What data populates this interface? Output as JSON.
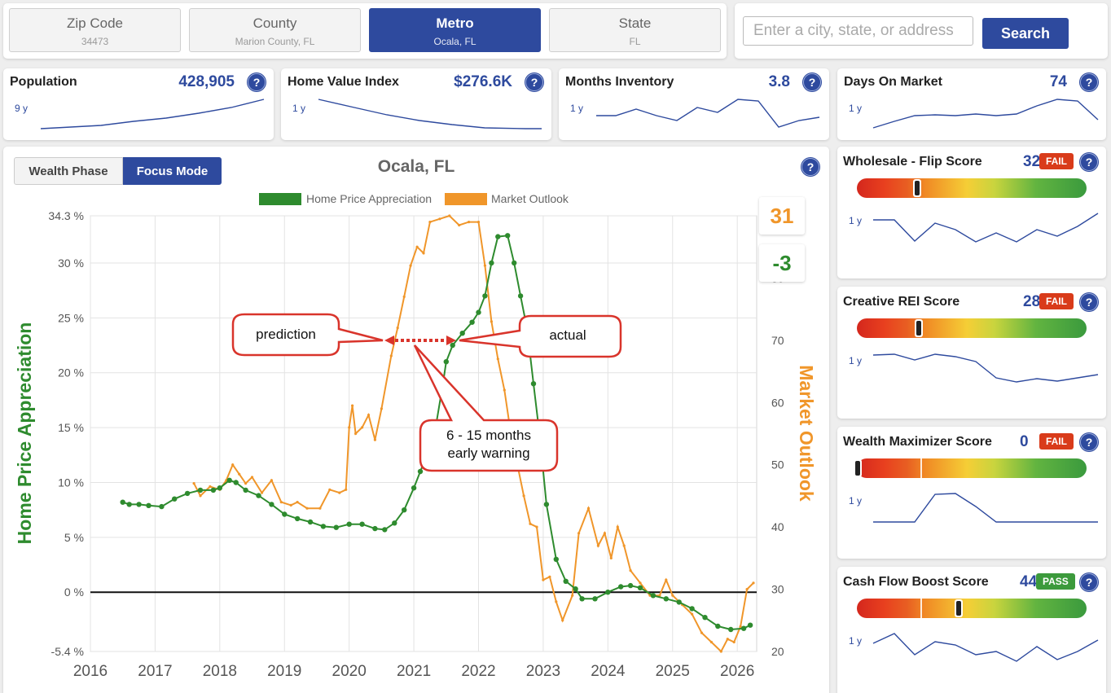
{
  "geo_tabs": [
    {
      "label": "Zip Code",
      "sub": "34473",
      "active": false
    },
    {
      "label": "County",
      "sub": "Marion County, FL",
      "active": false
    },
    {
      "label": "Metro",
      "sub": "Ocala, FL",
      "active": true
    },
    {
      "label": "State",
      "sub": "FL",
      "active": false
    }
  ],
  "search": {
    "placeholder": "Enter a city, state, or address",
    "button_label": "Search"
  },
  "help_glyph": "?",
  "stats": [
    {
      "title": "Population",
      "value": "428,905",
      "period": "9 y"
    },
    {
      "title": "Home Value Index",
      "value": "$276.6K",
      "period": "1 y"
    },
    {
      "title": "Months Inventory",
      "value": "3.8",
      "period": "1 y"
    },
    {
      "title": "Days On Market",
      "value": "74",
      "period": "1 y"
    }
  ],
  "mode_buttons": {
    "wealth_phase": "Wealth Phase",
    "focus_mode": "Focus Mode",
    "active": "focus_mode"
  },
  "scores_display": {
    "market_outlook": "31",
    "home_price_appreciation": "-3"
  },
  "callouts": {
    "prediction": "prediction",
    "actual": "actual",
    "warning_line1": "6 - 15 months",
    "warning_line2": "early warning"
  },
  "score_cards": [
    {
      "title": "Wholesale - Flip Score",
      "value": "32",
      "status": "FAIL",
      "gauge_fraction": 0.27,
      "period": "1 y"
    },
    {
      "title": "Creative REI Score",
      "value": "28",
      "status": "FAIL",
      "gauge_fraction": 0.28,
      "period": "1 y"
    },
    {
      "title": "Wealth Maximizer Score",
      "value": "0",
      "status": "FAIL",
      "gauge_fraction": 0.0,
      "period": "1 y"
    },
    {
      "title": "Cash Flow Boost Score",
      "value": "44",
      "status": "PASS",
      "gauge_fraction": 0.44,
      "period": "1 y"
    }
  ],
  "colors": {
    "brand_blue": "#2e4a9e",
    "hpa_green": "#2e8b2e",
    "outlook_orange": "#f0962a",
    "fail_red": "#d93b1a",
    "pass_green": "#3c9a3c"
  },
  "chart_data": {
    "type": "line",
    "title": "Ocala, FL",
    "ylabel": "Home Price Appreciation",
    "y2label": "Market Outlook",
    "xlabel": "",
    "xlim": [
      2016,
      2026.3
    ],
    "ylim": [
      -5.4,
      34.3
    ],
    "y2lim": [
      20,
      90
    ],
    "x_ticks": [
      "2016",
      "2017",
      "2018",
      "2019",
      "2020",
      "2021",
      "2022",
      "2023",
      "2024",
      "2025",
      "2026"
    ],
    "y_ticks": [
      "-5.4 %",
      "0 %",
      "5 %",
      "10 %",
      "15 %",
      "20 %",
      "25 %",
      "30 %",
      "34.3 %"
    ],
    "y2_ticks": [
      "20",
      "30",
      "40",
      "50",
      "60",
      "70",
      "80"
    ],
    "legend": [
      "Home Price Appreciation",
      "Market Outlook"
    ],
    "legend_position": "top",
    "grid": true,
    "series": [
      {
        "name": "Home Price Appreciation",
        "axis": "left",
        "points": [
          [
            2016.5,
            8.2
          ],
          [
            2016.6,
            8
          ],
          [
            2016.75,
            8
          ],
          [
            2016.9,
            7.9
          ],
          [
            2017.1,
            7.8
          ],
          [
            2017.3,
            8.5
          ],
          [
            2017.5,
            9
          ],
          [
            2017.7,
            9.3
          ],
          [
            2017.9,
            9.3
          ],
          [
            2018.0,
            9.5
          ],
          [
            2018.15,
            10.2
          ],
          [
            2018.25,
            10
          ],
          [
            2018.4,
            9.3
          ],
          [
            2018.6,
            8.8
          ],
          [
            2018.8,
            8
          ],
          [
            2019.0,
            7.1
          ],
          [
            2019.2,
            6.7
          ],
          [
            2019.4,
            6.4
          ],
          [
            2019.6,
            6
          ],
          [
            2019.8,
            5.9
          ],
          [
            2020.0,
            6.2
          ],
          [
            2020.2,
            6.2
          ],
          [
            2020.4,
            5.8
          ],
          [
            2020.55,
            5.7
          ],
          [
            2020.7,
            6.3
          ],
          [
            2020.85,
            7.5
          ],
          [
            2021.0,
            9.5
          ],
          [
            2021.1,
            11
          ],
          [
            2021.2,
            12.5
          ],
          [
            2021.35,
            15.5
          ],
          [
            2021.45,
            19
          ],
          [
            2021.5,
            21
          ],
          [
            2021.6,
            22.5
          ],
          [
            2021.75,
            23.6
          ],
          [
            2021.9,
            24.6
          ],
          [
            2022.0,
            25.5
          ],
          [
            2022.1,
            27
          ],
          [
            2022.2,
            30
          ],
          [
            2022.3,
            32.4
          ],
          [
            2022.45,
            32.5
          ],
          [
            2022.55,
            30
          ],
          [
            2022.65,
            27
          ],
          [
            2022.75,
            24
          ],
          [
            2022.85,
            19
          ],
          [
            2022.95,
            14
          ],
          [
            2023.05,
            8
          ],
          [
            2023.2,
            3
          ],
          [
            2023.35,
            1
          ],
          [
            2023.5,
            0.3
          ],
          [
            2023.6,
            -0.6
          ],
          [
            2023.8,
            -0.6
          ],
          [
            2024.0,
            0
          ],
          [
            2024.2,
            0.5
          ],
          [
            2024.35,
            0.6
          ],
          [
            2024.5,
            0.4
          ],
          [
            2024.7,
            -0.3
          ],
          [
            2024.9,
            -0.6
          ],
          [
            2025.1,
            -0.9
          ],
          [
            2025.3,
            -1.5
          ],
          [
            2025.5,
            -2.3
          ],
          [
            2025.7,
            -3.1
          ],
          [
            2025.9,
            -3.4
          ],
          [
            2026.1,
            -3.3
          ],
          [
            2026.2,
            -3
          ]
        ]
      },
      {
        "name": "Market Outlook",
        "axis": "right",
        "points": [
          [
            2017.6,
            47
          ],
          [
            2017.7,
            45
          ],
          [
            2017.85,
            46.5
          ],
          [
            2018.0,
            46
          ],
          [
            2018.1,
            47.5
          ],
          [
            2018.2,
            50
          ],
          [
            2018.3,
            48.5
          ],
          [
            2018.4,
            47
          ],
          [
            2018.5,
            48
          ],
          [
            2018.65,
            45.5
          ],
          [
            2018.8,
            47.5
          ],
          [
            2018.95,
            44
          ],
          [
            2019.1,
            43.5
          ],
          [
            2019.2,
            44
          ],
          [
            2019.35,
            43
          ],
          [
            2019.55,
            43
          ],
          [
            2019.7,
            46
          ],
          [
            2019.85,
            45.5
          ],
          [
            2019.95,
            46
          ],
          [
            2020.0,
            56
          ],
          [
            2020.05,
            59.5
          ],
          [
            2020.1,
            55
          ],
          [
            2020.2,
            56
          ],
          [
            2020.3,
            58
          ],
          [
            2020.4,
            54
          ],
          [
            2020.5,
            59
          ],
          [
            2020.65,
            67.5
          ],
          [
            2020.75,
            72
          ],
          [
            2020.85,
            77
          ],
          [
            2020.95,
            82
          ],
          [
            2021.05,
            85
          ],
          [
            2021.15,
            84
          ],
          [
            2021.25,
            89
          ],
          [
            2021.4,
            89.5
          ],
          [
            2021.55,
            90
          ],
          [
            2021.7,
            88.5
          ],
          [
            2021.85,
            89
          ],
          [
            2022.0,
            89
          ],
          [
            2022.1,
            82
          ],
          [
            2022.2,
            73
          ],
          [
            2022.3,
            67
          ],
          [
            2022.4,
            62
          ],
          [
            2022.5,
            55
          ],
          [
            2022.6,
            50
          ],
          [
            2022.7,
            45
          ],
          [
            2022.8,
            40.5
          ],
          [
            2022.9,
            40
          ],
          [
            2023.0,
            31.5
          ],
          [
            2023.1,
            32
          ],
          [
            2023.2,
            28
          ],
          [
            2023.3,
            25
          ],
          [
            2023.45,
            29
          ],
          [
            2023.55,
            39
          ],
          [
            2023.7,
            43
          ],
          [
            2023.85,
            37
          ],
          [
            2023.95,
            39
          ],
          [
            2024.05,
            35
          ],
          [
            2024.15,
            40
          ],
          [
            2024.25,
            37
          ],
          [
            2024.35,
            33
          ],
          [
            2024.5,
            31
          ],
          [
            2024.65,
            29
          ],
          [
            2024.8,
            29
          ],
          [
            2024.9,
            31.5
          ],
          [
            2025.0,
            29
          ],
          [
            2025.15,
            27.5
          ],
          [
            2025.3,
            26
          ],
          [
            2025.45,
            23
          ],
          [
            2025.6,
            21.5
          ],
          [
            2025.75,
            20
          ],
          [
            2025.85,
            22
          ],
          [
            2025.95,
            21.5
          ],
          [
            2026.05,
            24
          ],
          [
            2026.15,
            30
          ],
          [
            2026.25,
            31
          ]
        ]
      }
    ]
  }
}
